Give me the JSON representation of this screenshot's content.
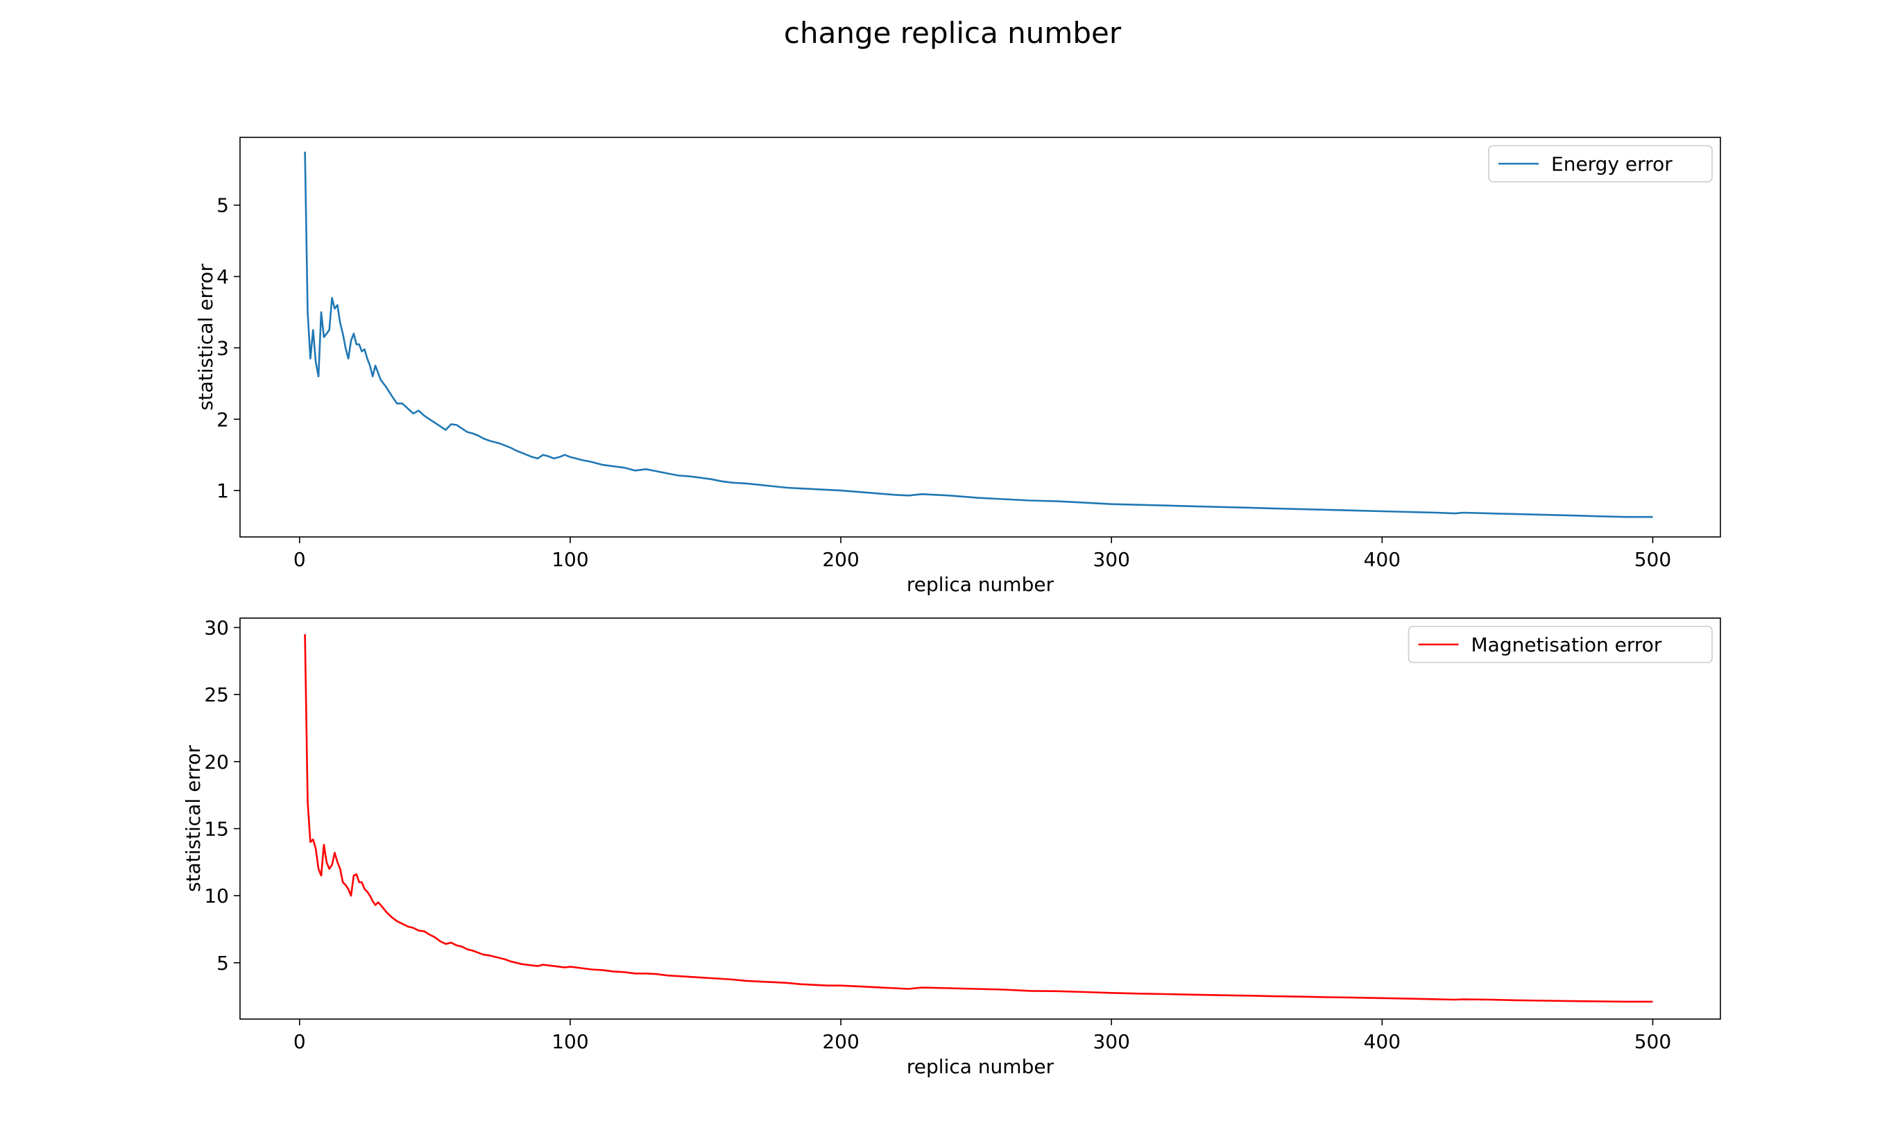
{
  "figure": {
    "title": "change replica number"
  },
  "chart_data": [
    {
      "type": "line",
      "xlabel": "replica number",
      "ylabel": "statistical error",
      "xlim": [
        -22,
        525
      ],
      "ylim": [
        0.35,
        5.95
      ],
      "xticks": [
        0,
        100,
        200,
        300,
        400,
        500
      ],
      "yticks": [
        1,
        2,
        3,
        4,
        5
      ],
      "grid": false,
      "legend_position": "top-right",
      "series": [
        {
          "name": "Energy error",
          "color": "#1f77b4",
          "x": [
            2,
            3,
            4,
            5,
            6,
            7,
            8,
            9,
            10,
            11,
            12,
            13,
            14,
            15,
            16,
            17,
            18,
            19,
            20,
            21,
            22,
            23,
            24,
            25,
            26,
            27,
            28,
            29,
            30,
            32,
            34,
            36,
            38,
            40,
            42,
            44,
            46,
            48,
            50,
            52,
            54,
            56,
            58,
            60,
            62,
            64,
            66,
            68,
            70,
            72,
            74,
            76,
            78,
            80,
            82,
            84,
            86,
            88,
            90,
            92,
            94,
            96,
            98,
            100,
            104,
            108,
            112,
            116,
            120,
            124,
            128,
            132,
            136,
            140,
            144,
            148,
            152,
            156,
            160,
            165,
            170,
            175,
            180,
            185,
            190,
            195,
            200,
            210,
            220,
            225,
            230,
            240,
            250,
            260,
            270,
            280,
            290,
            300,
            310,
            320,
            330,
            340,
            350,
            360,
            370,
            380,
            390,
            400,
            410,
            420,
            427,
            430,
            440,
            450,
            460,
            470,
            480,
            490,
            500
          ],
          "values": [
            5.75,
            3.5,
            2.85,
            3.25,
            2.8,
            2.6,
            3.5,
            3.15,
            3.2,
            3.25,
            3.7,
            3.55,
            3.6,
            3.35,
            3.2,
            3.0,
            2.85,
            3.1,
            3.2,
            3.05,
            3.05,
            2.95,
            2.98,
            2.85,
            2.75,
            2.6,
            2.75,
            2.65,
            2.55,
            2.45,
            2.33,
            2.22,
            2.22,
            2.15,
            2.08,
            2.12,
            2.05,
            2.0,
            1.95,
            1.9,
            1.85,
            1.93,
            1.92,
            1.87,
            1.82,
            1.8,
            1.77,
            1.73,
            1.7,
            1.68,
            1.66,
            1.63,
            1.6,
            1.56,
            1.53,
            1.5,
            1.47,
            1.45,
            1.5,
            1.48,
            1.45,
            1.47,
            1.5,
            1.47,
            1.43,
            1.4,
            1.36,
            1.34,
            1.32,
            1.28,
            1.3,
            1.27,
            1.24,
            1.21,
            1.2,
            1.18,
            1.16,
            1.13,
            1.11,
            1.1,
            1.08,
            1.06,
            1.04,
            1.03,
            1.02,
            1.01,
            1.0,
            0.97,
            0.94,
            0.93,
            0.95,
            0.93,
            0.9,
            0.88,
            0.86,
            0.85,
            0.83,
            0.81,
            0.8,
            0.79,
            0.78,
            0.77,
            0.76,
            0.75,
            0.74,
            0.73,
            0.72,
            0.71,
            0.7,
            0.69,
            0.68,
            0.69,
            0.68,
            0.67,
            0.66,
            0.65,
            0.64,
            0.63,
            0.63
          ]
        }
      ]
    },
    {
      "type": "line",
      "xlabel": "replica number",
      "ylabel": "statistical error",
      "xlim": [
        -22,
        525
      ],
      "ylim": [
        0.8,
        30.7
      ],
      "xticks": [
        0,
        100,
        200,
        300,
        400,
        500
      ],
      "yticks": [
        5,
        10,
        15,
        20,
        25,
        30
      ],
      "grid": false,
      "legend_position": "top-right",
      "series": [
        {
          "name": "Magnetisation error",
          "color": "#ff0000",
          "x": [
            2,
            3,
            4,
            5,
            6,
            7,
            8,
            9,
            10,
            11,
            12,
            13,
            14,
            15,
            16,
            17,
            18,
            19,
            20,
            21,
            22,
            23,
            24,
            25,
            26,
            27,
            28,
            29,
            30,
            32,
            34,
            36,
            38,
            40,
            42,
            44,
            46,
            48,
            50,
            52,
            54,
            56,
            58,
            60,
            62,
            64,
            66,
            68,
            70,
            72,
            74,
            76,
            78,
            80,
            82,
            84,
            86,
            88,
            90,
            92,
            94,
            96,
            98,
            100,
            104,
            108,
            112,
            116,
            120,
            124,
            128,
            132,
            136,
            140,
            144,
            148,
            152,
            156,
            160,
            165,
            170,
            175,
            180,
            185,
            190,
            195,
            200,
            210,
            220,
            225,
            230,
            240,
            250,
            260,
            270,
            280,
            290,
            300,
            310,
            320,
            330,
            340,
            350,
            360,
            370,
            380,
            390,
            400,
            410,
            420,
            427,
            430,
            440,
            450,
            460,
            470,
            480,
            490,
            500
          ],
          "values": [
            29.5,
            17.0,
            14.0,
            14.2,
            13.5,
            12.0,
            11.5,
            13.8,
            12.5,
            12.0,
            12.3,
            13.2,
            12.5,
            12.0,
            11.0,
            10.8,
            10.5,
            10.0,
            11.5,
            11.6,
            11.0,
            11.0,
            10.5,
            10.3,
            10.0,
            9.6,
            9.3,
            9.5,
            9.3,
            8.8,
            8.4,
            8.1,
            7.9,
            7.7,
            7.6,
            7.4,
            7.35,
            7.1,
            6.9,
            6.6,
            6.4,
            6.5,
            6.3,
            6.2,
            6.0,
            5.9,
            5.75,
            5.6,
            5.55,
            5.45,
            5.35,
            5.25,
            5.1,
            5.0,
            4.9,
            4.85,
            4.8,
            4.75,
            4.85,
            4.8,
            4.75,
            4.7,
            4.65,
            4.7,
            4.6,
            4.5,
            4.45,
            4.35,
            4.3,
            4.2,
            4.2,
            4.15,
            4.05,
            4.0,
            3.95,
            3.9,
            3.85,
            3.8,
            3.75,
            3.65,
            3.6,
            3.55,
            3.5,
            3.4,
            3.35,
            3.3,
            3.3,
            3.2,
            3.1,
            3.05,
            3.15,
            3.1,
            3.05,
            3.0,
            2.9,
            2.88,
            2.82,
            2.75,
            2.7,
            2.66,
            2.62,
            2.58,
            2.55,
            2.5,
            2.47,
            2.43,
            2.4,
            2.36,
            2.32,
            2.28,
            2.25,
            2.27,
            2.25,
            2.2,
            2.17,
            2.14,
            2.12,
            2.1,
            2.1
          ]
        }
      ]
    }
  ]
}
